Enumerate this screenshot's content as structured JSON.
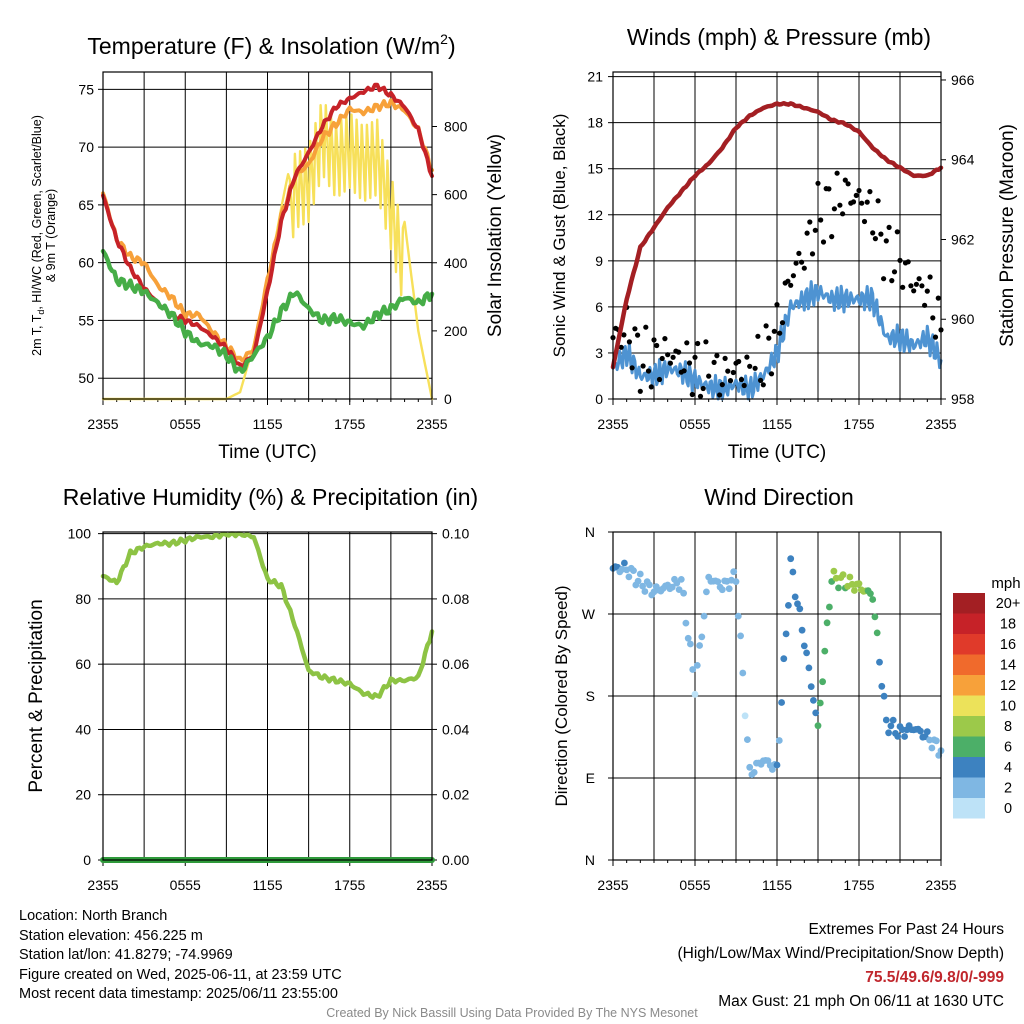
{
  "x_ticks": [
    "2355",
    "0555",
    "1155",
    "1755",
    "2355"
  ],
  "chart_data": [
    {
      "id": "temperature",
      "type": "line",
      "title_main": "Temperature (F) & Insolation (W/m",
      "title_sup": "2",
      "title_end": ")",
      "xlabel": "Time (UTC)",
      "ylabel_left_line1": "2m T, T",
      "ylabel_left_sub": "d",
      "ylabel_left_rest": ", HI/WC (Red, Green, Scarlet/Blue)",
      "ylabel_left_line2": "& 9m T (Orange)",
      "ylabel_right": "Solar Insolation (Yellow)",
      "xlim": [
        0,
        24
      ],
      "ylim": [
        48.2,
        76.5
      ],
      "y_ticks": [
        50,
        55,
        60,
        65,
        70,
        75
      ],
      "y2lim": [
        0,
        960
      ],
      "y2_ticks": [
        0,
        200,
        400,
        600,
        800
      ],
      "series": [
        {
          "color": "#f7a13a",
          "axis": "right",
          "x": [
            0,
            1,
            2,
            3,
            4,
            5,
            6,
            7,
            8,
            9,
            10,
            11,
            12,
            13,
            14,
            15,
            16,
            17,
            18,
            19,
            20,
            21,
            22,
            23,
            24
          ],
          "y": [
            0,
            0,
            0,
            0,
            0,
            0,
            0,
            0,
            0,
            0,
            20,
            160,
            340,
            560,
            760,
            780,
            920,
            850,
            880,
            840,
            860,
            700,
            520,
            200,
            0
          ]
        },
        {
          "color": "#f7a13a",
          "axis": "left",
          "x": [
            0,
            1,
            2,
            3,
            4,
            5,
            6,
            7,
            8,
            9,
            10,
            11,
            12,
            13,
            14,
            15,
            16,
            17,
            18,
            19,
            20,
            21,
            22,
            23,
            24
          ],
          "y": [
            66.0,
            62.0,
            60.5,
            60.0,
            58.0,
            57.0,
            55.5,
            55.5,
            54.0,
            52.8,
            51.5,
            52.5,
            58.5,
            64.0,
            67.5,
            68.5,
            70.8,
            72.0,
            73.3,
            73.0,
            73.5,
            73.8,
            73.2,
            71.5,
            68.0
          ]
        },
        {
          "color": "#c62228",
          "axis": "left",
          "x": [
            0,
            1,
            2,
            3,
            4,
            5,
            6,
            7,
            8,
            9,
            10,
            11,
            12,
            13,
            14,
            15,
            16,
            17,
            18,
            19,
            20,
            21,
            22,
            23,
            24
          ],
          "y": [
            65.8,
            62.0,
            59.5,
            57.8,
            56.5,
            55.5,
            55.0,
            54.5,
            53.6,
            52.6,
            51.0,
            52.0,
            57.5,
            63.5,
            67.5,
            69.5,
            71.8,
            73.5,
            74.2,
            74.8,
            75.3,
            74.5,
            73.5,
            71.5,
            67.5
          ]
        },
        {
          "color": "#46ad47",
          "axis": "left",
          "x": [
            0,
            1,
            2,
            3,
            4,
            5,
            6,
            7,
            8,
            9,
            10,
            11,
            12,
            13,
            14,
            15,
            16,
            17,
            18,
            19,
            20,
            21,
            22,
            23,
            24
          ],
          "y": [
            61.0,
            58.5,
            58.0,
            57.5,
            56.5,
            55.5,
            54.0,
            53.0,
            52.8,
            52.0,
            50.5,
            52.0,
            53.5,
            55.8,
            57.5,
            56.0,
            55.0,
            55.2,
            54.8,
            54.5,
            55.5,
            56.0,
            57.0,
            56.5,
            57.3
          ]
        }
      ]
    },
    {
      "id": "winds",
      "type": "scatter",
      "title_main": "Winds (mph) & Pressure (mb)",
      "xlabel": "Time (UTC)",
      "ylabel_left": "Sonic Wind & Gust (Blue, Black)",
      "ylabel_right": "Station Pressure (Maroon)",
      "xlim": [
        0,
        24
      ],
      "ylim": [
        0,
        21.3
      ],
      "y_ticks": [
        0,
        3,
        6,
        9,
        12,
        15,
        18,
        21
      ],
      "y2lim": [
        958,
        966.2
      ],
      "y2_ticks": [
        958,
        960,
        962,
        964,
        966
      ],
      "series": [
        {
          "color": "#4e93d2",
          "axis": "left",
          "style": "line",
          "x": [
            0,
            1,
            2,
            3,
            4,
            5,
            6,
            7,
            8,
            9,
            10,
            11,
            12,
            13,
            14,
            15,
            16,
            17,
            18,
            19,
            20,
            21,
            22,
            23,
            24
          ],
          "y": [
            2.0,
            3.0,
            1.5,
            1.5,
            2.0,
            1.8,
            1.2,
            0.8,
            0.6,
            1.0,
            0.6,
            1.5,
            3.0,
            6.0,
            6.5,
            7.0,
            6.5,
            6.5,
            6.5,
            6.5,
            4.0,
            4.0,
            3.5,
            4.0,
            2.5
          ]
        },
        {
          "color": "#000000",
          "axis": "left",
          "style": "points",
          "x": [
            0,
            1,
            2,
            3,
            4,
            5,
            6,
            7,
            8,
            9,
            10,
            11,
            12,
            13,
            14,
            15,
            16,
            17,
            18,
            19,
            20,
            21,
            22,
            23,
            24
          ],
          "y": [
            4.0,
            4.5,
            2.5,
            2.5,
            3.0,
            2.5,
            2.0,
            1.5,
            1.5,
            2.0,
            1.5,
            2.5,
            4.5,
            8.0,
            9.5,
            12.0,
            12.5,
            13.5,
            13.0,
            12.0,
            9.5,
            9.0,
            7.5,
            7.0,
            4.5
          ]
        },
        {
          "color": "#a31f23",
          "axis": "right",
          "style": "line",
          "x": [
            0,
            1,
            2,
            3,
            4,
            5,
            6,
            7,
            8,
            9,
            10,
            11,
            12,
            13,
            14,
            15,
            16,
            17,
            18,
            19,
            20,
            21,
            22,
            23,
            24
          ],
          "y": [
            958.8,
            960.5,
            961.8,
            962.3,
            962.8,
            963.2,
            963.6,
            963.9,
            964.3,
            964.8,
            965.1,
            965.3,
            965.4,
            965.4,
            965.3,
            965.2,
            965.0,
            964.9,
            964.7,
            964.3,
            964.0,
            963.8,
            963.6,
            963.6,
            963.8
          ]
        }
      ]
    },
    {
      "id": "humidity",
      "type": "line",
      "title_main": "Relative Humidity (%) & Precipitation (in)",
      "ylabel_left": "Percent & Precipitation",
      "xlim": [
        0,
        24
      ],
      "ylim": [
        0,
        100.5
      ],
      "y_ticks": [
        0,
        20,
        40,
        60,
        80,
        100
      ],
      "y2_ticks": [
        "0.00",
        "0.02",
        "0.04",
        "0.06",
        "0.08",
        "0.10"
      ],
      "series": [
        {
          "color": "#8dc344",
          "axis": "left",
          "x": [
            0,
            1,
            2,
            3,
            4,
            5,
            6,
            7,
            8,
            9,
            10,
            11,
            12,
            13,
            14,
            15,
            16,
            17,
            18,
            19,
            20,
            21,
            22,
            23,
            24
          ],
          "y": [
            87,
            85,
            94,
            96,
            97,
            97,
            98,
            99,
            99,
            100,
            100,
            99,
            86,
            84,
            72,
            58,
            56,
            55,
            54,
            51,
            50,
            55,
            55,
            56,
            70
          ]
        },
        {
          "color": "#2f9a3b",
          "axis": "right",
          "x": [
            0,
            24
          ],
          "y": [
            0,
            0
          ]
        }
      ]
    },
    {
      "id": "wind-direction",
      "type": "scatter",
      "title_main": "Wind Direction",
      "ylabel_left": "Direction (Colored By Speed)",
      "xlim": [
        0,
        24
      ],
      "ylim": [
        0,
        360
      ],
      "y_ticks": [
        "N",
        "E",
        "S",
        "W",
        "N"
      ],
      "colorbar_title": "mph",
      "colorbar_labels": [
        "20+",
        "18",
        "16",
        "14",
        "12",
        "10",
        "8",
        "6",
        "4",
        "2",
        "0"
      ],
      "colorbar_colors": [
        "#a31f23",
        "#c62228",
        "#e03a2a",
        "#f06a2c",
        "#f7a13a",
        "#ece25a",
        "#9cc94a",
        "#4caf68",
        "#3d82c0",
        "#7fb7e3",
        "#bde2f7"
      ],
      "series": [
        {
          "x": [
            0,
            1,
            2,
            3,
            4,
            5,
            6,
            7,
            8,
            9,
            10,
            11,
            12,
            13,
            14,
            15,
            16,
            17,
            18,
            19,
            20,
            21,
            22,
            23,
            24
          ],
          "y": [
            320,
            320,
            305,
            295,
            300,
            305,
            190,
            310,
            300,
            310,
            95,
            110,
            100,
            325,
            240,
            145,
            310,
            305,
            300,
            290,
            150,
            140,
            145,
            135,
            120
          ],
          "speed": [
            3,
            3,
            2,
            2,
            2,
            2,
            1,
            2,
            2,
            2,
            1,
            2,
            3,
            4,
            4,
            5,
            7,
            7,
            8,
            6,
            4,
            4,
            4,
            3,
            2
          ]
        }
      ]
    }
  ],
  "info_left": {
    "location": "Location: North Branch",
    "elevation": "Station elevation: 456.225 m",
    "latlon": "Station lat/lon: 41.8279; -74.9969",
    "created": "Figure created on Wed, 2025-06-11, at 23:59 UTC",
    "recent": "Most recent data timestamp: 2025/06/11 23:55:00"
  },
  "info_right": {
    "title": "Extremes For Past 24 Hours",
    "legend": "(High/Low/Max Wind/Precipitation/Snow Depth)",
    "values": "75.5/49.6/9.8/0/-999",
    "gust": "Max Gust: 21 mph On 06/11 at 1630 UTC"
  },
  "credit": "Created By Nick Bassill Using Data Provided By The NYS Mesonet"
}
